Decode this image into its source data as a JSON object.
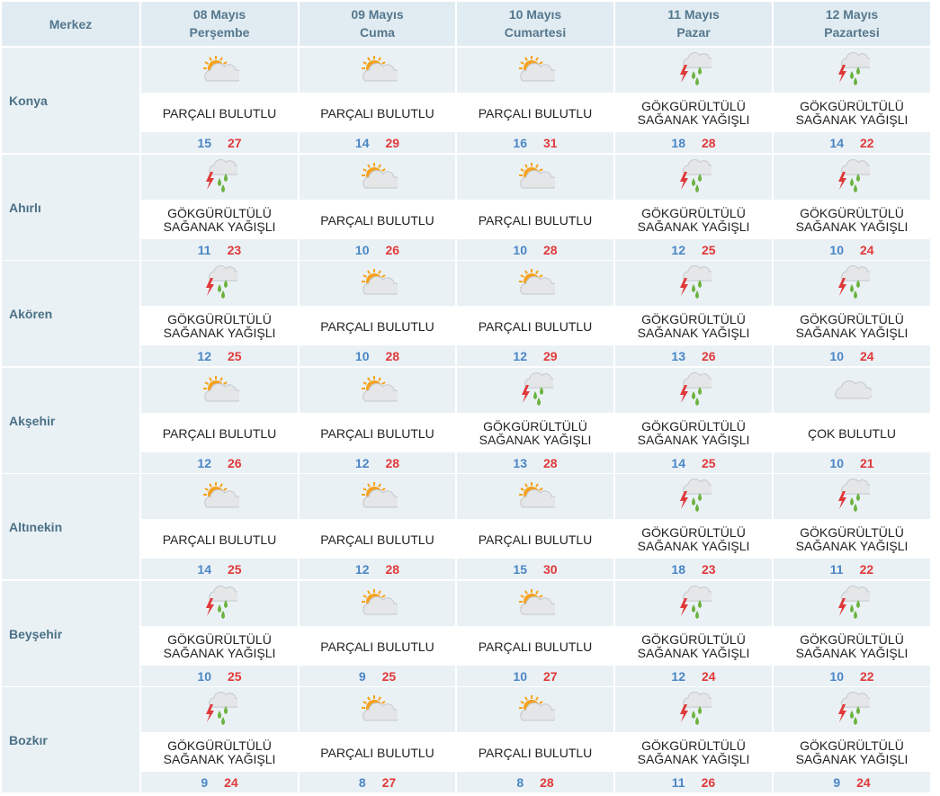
{
  "header": {
    "center_label": "Merkez",
    "days": [
      {
        "date": "08 Mayıs",
        "weekday": "Perşembe"
      },
      {
        "date": "09 Mayıs",
        "weekday": "Cuma"
      },
      {
        "date": "10 Mayıs",
        "weekday": "Cumartesi"
      },
      {
        "date": "11 Mayıs",
        "weekday": "Pazar"
      },
      {
        "date": "12 Mayıs",
        "weekday": "Pazartesi"
      }
    ]
  },
  "conditions": {
    "partly": {
      "icon": "partly-cloudy-icon",
      "lines": [
        "PARÇALI BULUTLU"
      ]
    },
    "storm": {
      "icon": "thunder-shower-icon",
      "lines": [
        "GÖKGÜRÜLTÜLÜ",
        "SAĞANAK YAĞIŞLI"
      ]
    },
    "cloudy": {
      "icon": "very-cloudy-icon",
      "lines": [
        "ÇOK BULUTLU"
      ]
    }
  },
  "colors": {
    "min_temp": "#4a86c5",
    "max_temp": "#e0393a",
    "sun": "#f6a21e",
    "cloud": "#e4e6e8",
    "rain": "#6cb33f",
    "bolt": "#e0393a"
  },
  "rows": [
    {
      "city": "Konya",
      "forecast": [
        {
          "cond": "partly",
          "min": "15",
          "max": "27"
        },
        {
          "cond": "partly",
          "min": "14",
          "max": "29"
        },
        {
          "cond": "partly",
          "min": "16",
          "max": "31"
        },
        {
          "cond": "storm",
          "min": "18",
          "max": "28"
        },
        {
          "cond": "storm",
          "min": "14",
          "max": "22"
        }
      ]
    },
    {
      "city": "Ahırlı",
      "forecast": [
        {
          "cond": "storm",
          "min": "11",
          "max": "23"
        },
        {
          "cond": "partly",
          "min": "10",
          "max": "26"
        },
        {
          "cond": "partly",
          "min": "10",
          "max": "28"
        },
        {
          "cond": "storm",
          "min": "12",
          "max": "25"
        },
        {
          "cond": "storm",
          "min": "10",
          "max": "24"
        }
      ]
    },
    {
      "city": "Akören",
      "forecast": [
        {
          "cond": "storm",
          "min": "12",
          "max": "25"
        },
        {
          "cond": "partly",
          "min": "10",
          "max": "28"
        },
        {
          "cond": "partly",
          "min": "12",
          "max": "29"
        },
        {
          "cond": "storm",
          "min": "13",
          "max": "26"
        },
        {
          "cond": "storm",
          "min": "10",
          "max": "24"
        }
      ]
    },
    {
      "city": "Akşehir",
      "forecast": [
        {
          "cond": "partly",
          "min": "12",
          "max": "26"
        },
        {
          "cond": "partly",
          "min": "12",
          "max": "28"
        },
        {
          "cond": "storm",
          "min": "13",
          "max": "28"
        },
        {
          "cond": "storm",
          "min": "14",
          "max": "25"
        },
        {
          "cond": "cloudy",
          "min": "10",
          "max": "21"
        }
      ]
    },
    {
      "city": "Altınekin",
      "forecast": [
        {
          "cond": "partly",
          "min": "14",
          "max": "25"
        },
        {
          "cond": "partly",
          "min": "12",
          "max": "28"
        },
        {
          "cond": "partly",
          "min": "15",
          "max": "30"
        },
        {
          "cond": "storm",
          "min": "18",
          "max": "23"
        },
        {
          "cond": "storm",
          "min": "11",
          "max": "22"
        }
      ]
    },
    {
      "city": "Beyşehir",
      "forecast": [
        {
          "cond": "storm",
          "min": "10",
          "max": "25"
        },
        {
          "cond": "partly",
          "min": "9",
          "max": "25"
        },
        {
          "cond": "partly",
          "min": "10",
          "max": "27"
        },
        {
          "cond": "storm",
          "min": "12",
          "max": "24"
        },
        {
          "cond": "storm",
          "min": "10",
          "max": "22"
        }
      ]
    },
    {
      "city": "Bozkır",
      "forecast": [
        {
          "cond": "storm",
          "min": "9",
          "max": "24"
        },
        {
          "cond": "partly",
          "min": "8",
          "max": "27"
        },
        {
          "cond": "partly",
          "min": "8",
          "max": "28"
        },
        {
          "cond": "storm",
          "min": "11",
          "max": "26"
        },
        {
          "cond": "storm",
          "min": "9",
          "max": "24"
        }
      ]
    }
  ]
}
